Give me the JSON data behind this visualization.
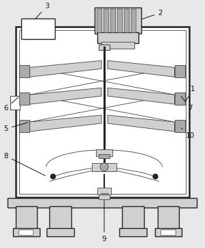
{
  "fig_bg": "#e8e8e8",
  "white": "#ffffff",
  "light_gray": "#d0d0d0",
  "mid_gray": "#aaaaaa",
  "dark_gray": "#666666",
  "line_col": "#404040",
  "very_dark": "#222222",
  "lw_outer": 1.8,
  "lw_inner": 1.0,
  "lw_thin": 0.6,
  "label_fs": 7.5,
  "label_col": "#111111"
}
